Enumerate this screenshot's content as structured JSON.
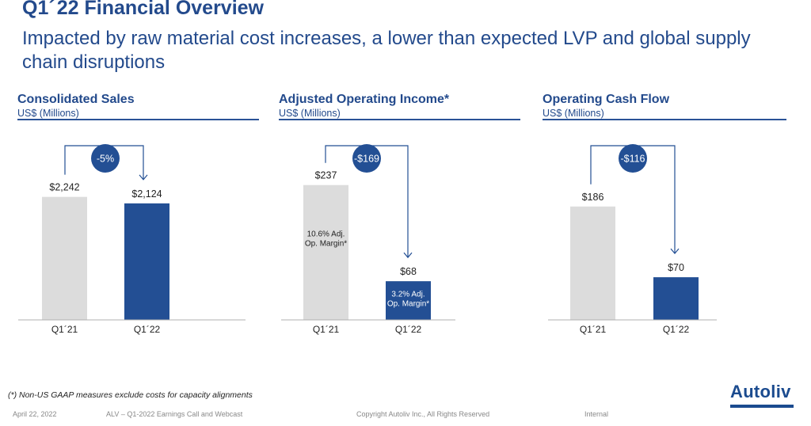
{
  "header": {
    "title": "Q1´ 22 Financial Overview",
    "subtitle": "Impacted by raw material cost increases, a lower than expected LVP and global supply chain disruptions"
  },
  "colors": {
    "accent": "#234a8c",
    "bar_prior": "#dcdcdc",
    "bar_current": "#234f94",
    "rule": "#2a5297"
  },
  "chart_data": [
    {
      "type": "bar",
      "title": "Consolidated Sales",
      "unit": "US$ (Millions)",
      "categories": [
        "Q1´21",
        "Q1´22"
      ],
      "values": [
        2242,
        2124
      ],
      "value_labels": [
        "$2,242",
        "$2,124"
      ],
      "change_label": "-5%",
      "bar_inner_labels": [
        "",
        ""
      ],
      "ylim": [
        0,
        2800
      ]
    },
    {
      "type": "bar",
      "title": "Adjusted Operating Income*",
      "unit": "US$ (Millions)",
      "categories": [
        "Q1´21",
        "Q1´22"
      ],
      "values": [
        237,
        68
      ],
      "value_labels": [
        "$237",
        "$68"
      ],
      "change_label": "-$169",
      "bar_inner_labels": [
        "10.6% Adj.|Op. Margin*",
        "3.2% Adj.|Op. Margin*"
      ],
      "ylim": [
        0,
        270
      ]
    },
    {
      "type": "bar",
      "title": "Operating Cash Flow",
      "unit": "US$ (Millions)",
      "categories": [
        "Q1´21",
        "Q1´22"
      ],
      "values": [
        186,
        70
      ],
      "value_labels": [
        "$186",
        "$70"
      ],
      "change_label": "-$116",
      "bar_inner_labels": [
        "",
        ""
      ],
      "ylim": [
        0,
        252
      ]
    }
  ],
  "footnote": "(*) Non-US GAAP measures exclude costs for capacity alignments",
  "footer": {
    "date": "April 22, 2022",
    "event": "ALV – Q1-2022 Earnings Call and Webcast",
    "copyright": "Copyright Autoliv Inc., All Rights Reserved",
    "classification": "Internal"
  },
  "logo": {
    "text": "Autoliv"
  }
}
